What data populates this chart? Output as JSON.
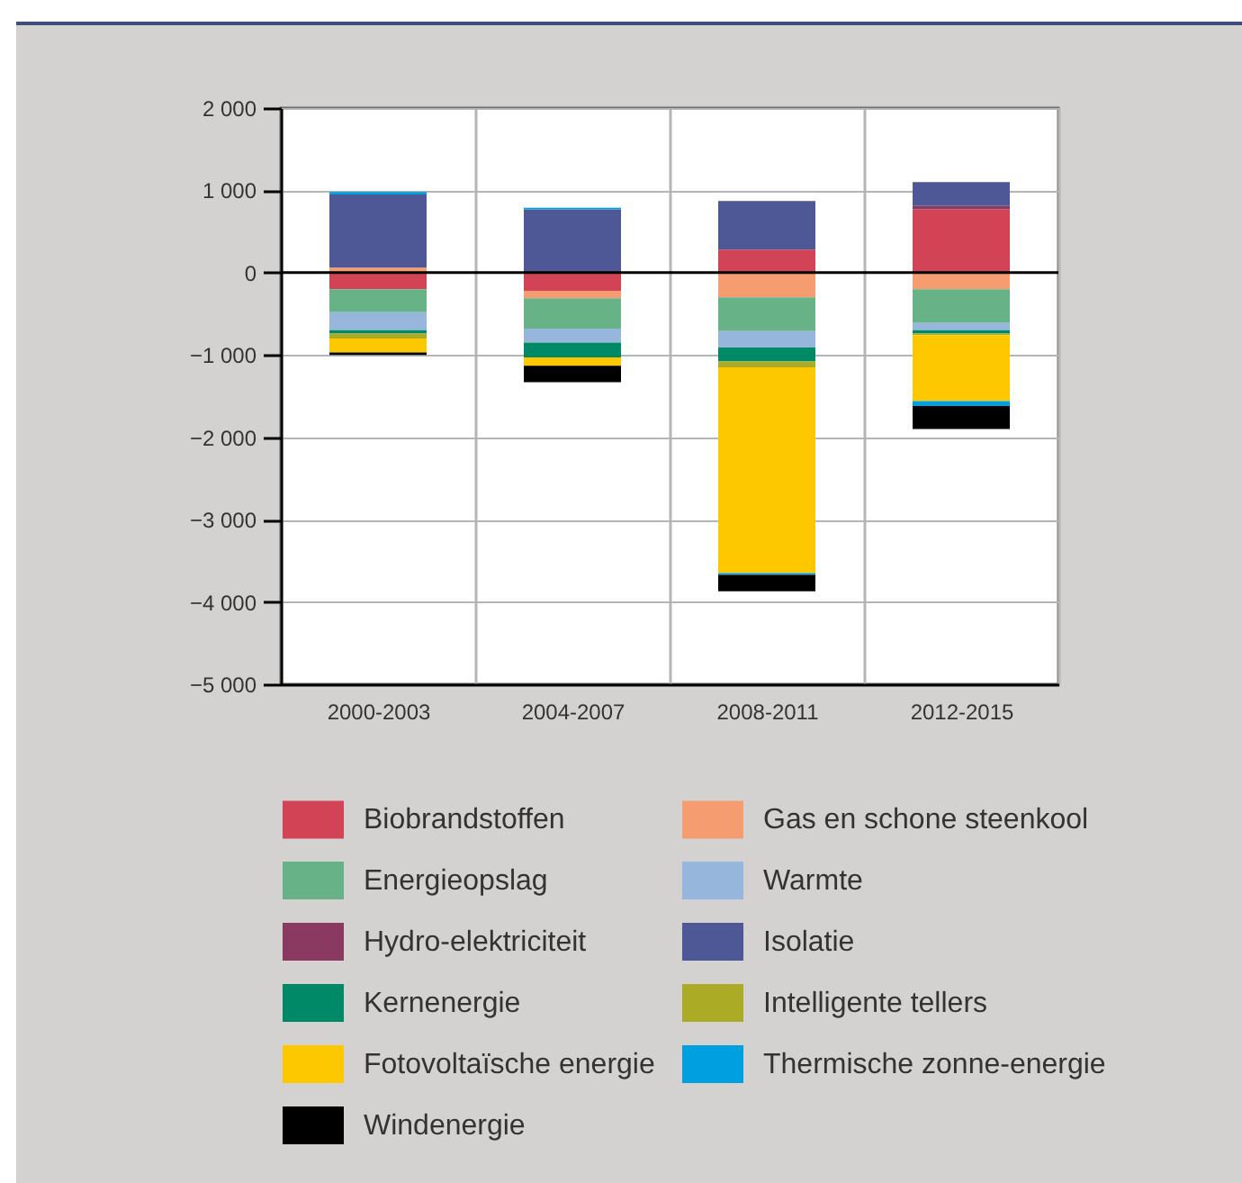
{
  "chart_data": {
    "type": "bar",
    "stacked": true,
    "categories": [
      "2000-2003",
      "2004-2007",
      "2008-2011",
      "2012-2015"
    ],
    "series": [
      {
        "name": "Biobrandstoffen",
        "color": "#d24356",
        "values": [
          -200,
          -220,
          280,
          770
        ]
      },
      {
        "name": "Gas en schone steenkool",
        "color": "#f59d70",
        "values": [
          60,
          -90,
          -300,
          -200
        ]
      },
      {
        "name": "Energieopslag",
        "color": "#67b287",
        "values": [
          -280,
          -370,
          -410,
          -410
        ]
      },
      {
        "name": "Warmte",
        "color": "#97b6dc",
        "values": [
          -220,
          -170,
          -200,
          -90
        ]
      },
      {
        "name": "Hydro-elektriciteit",
        "color": "#8a3a61",
        "values": [
          null,
          null,
          null,
          40
        ]
      },
      {
        "name": "Isolatie",
        "color": "#4f5897",
        "values": [
          890,
          770,
          590,
          290
        ]
      },
      {
        "name": "Kernenergie",
        "color": "#008966",
        "values": [
          -40,
          -180,
          -170,
          -40
        ]
      },
      {
        "name": "Intelligente tellers",
        "color": "#acab26",
        "values": [
          -60,
          null,
          -70,
          -20
        ]
      },
      {
        "name": "Fotovoltaïsche energie",
        "color": "#fdc800",
        "values": [
          -170,
          -100,
          -2500,
          -800
        ]
      },
      {
        "name": "Thermische zonne-energie",
        "color": "#009fe0",
        "values": [
          30,
          20,
          -20,
          -60
        ]
      },
      {
        "name": "Windenergie",
        "color": "#000000",
        "values": [
          -30,
          -200,
          -200,
          -280
        ]
      }
    ],
    "ylim": [
      -5000,
      2000
    ],
    "yticks": [
      {
        "value": 2000,
        "label": "2 000"
      },
      {
        "value": 1000,
        "label": "1 000"
      },
      0,
      {
        "value": -1000,
        "label": "−1 000"
      },
      {
        "value": -2000,
        "label": "−2 000"
      },
      {
        "value": -3000,
        "label": "−3 000"
      },
      {
        "value": -4000,
        "label": "−4 000"
      },
      {
        "value": -5000,
        "label": "−5 000"
      }
    ],
    "ref_lines": [
      {
        "axis": "y",
        "value": 0,
        "color": "#000000"
      }
    ],
    "grid": true,
    "legend": "bottom"
  }
}
